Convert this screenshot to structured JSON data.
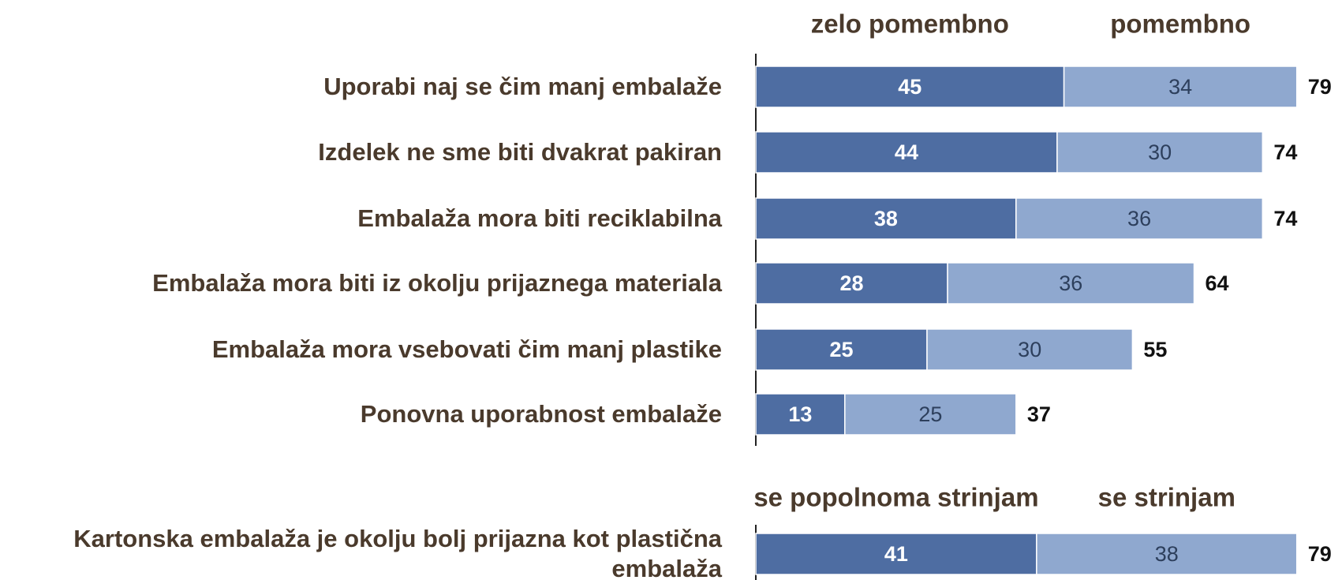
{
  "chart_data": [
    {
      "type": "bar",
      "orientation": "horizontal",
      "stacked": true,
      "categories": [
        "Uporabi naj se čim manj embalaže",
        "Izdelek ne sme biti dvakrat pakiran",
        "Embalaža mora biti reciklabilna",
        "Embalaža mora biti iz okolju prijaznega materiala",
        "Embalaža mora vsebovati čim manj plastike",
        "Ponovna uporabnost embalaže"
      ],
      "series": [
        {
          "name": "zelo pomembno",
          "color": "#4e6da2",
          "values": [
            45,
            44,
            38,
            28,
            25,
            13
          ]
        },
        {
          "name": "pomembno",
          "color": "#8fa8cf",
          "values": [
            34,
            30,
            36,
            36,
            30,
            25
          ]
        }
      ],
      "totals": [
        79,
        74,
        74,
        64,
        55,
        37
      ]
    },
    {
      "type": "bar",
      "orientation": "horizontal",
      "stacked": true,
      "categories": [
        "Kartonska embalaža je okolju bolj prijazna kot plastična embalaža"
      ],
      "series": [
        {
          "name": "se popolnoma strinjam",
          "color": "#4e6da2",
          "values": [
            41
          ]
        },
        {
          "name": "se strinjam",
          "color": "#8fa8cf",
          "values": [
            38
          ]
        }
      ],
      "totals": [
        79
      ]
    }
  ]
}
